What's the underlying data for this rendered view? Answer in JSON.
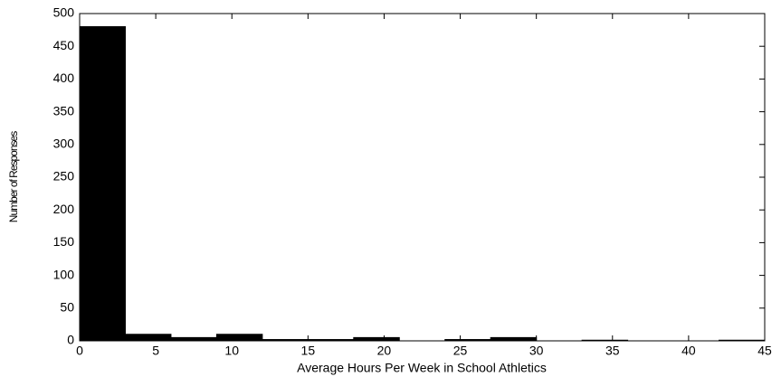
{
  "chart_data": {
    "type": "histogram",
    "x_label": "Average Hours Per Week in School Athletics",
    "y_label": "Number of Responses",
    "bins": [
      0,
      3,
      6,
      9,
      12,
      15,
      18,
      21,
      24,
      27,
      30,
      33,
      36,
      39,
      42,
      45
    ],
    "values": [
      480,
      10,
      5,
      10,
      2,
      2,
      5,
      0,
      2,
      5,
      0,
      1,
      0,
      0,
      1
    ],
    "color": "#000000",
    "xlim": [
      0,
      45
    ],
    "xticks": [
      0,
      5,
      10,
      15,
      20,
      25,
      30,
      35,
      40,
      45
    ],
    "ylim": [
      0,
      500
    ],
    "yticks": [
      0,
      50,
      100,
      150,
      200,
      250,
      300,
      350,
      400,
      450,
      500
    ],
    "grid": false
  }
}
